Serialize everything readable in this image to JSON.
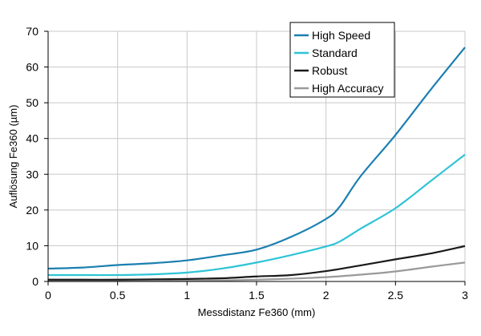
{
  "chart_data": {
    "type": "line",
    "title": "",
    "xlabel": "Messdistanz Fe360 (mm)",
    "ylabel": "Auflösung Fe360 (µm)",
    "xlim": [
      0,
      3
    ],
    "ylim": [
      0,
      70
    ],
    "x_ticks": [
      "0",
      "0.5",
      "1",
      "1.5",
      "2",
      "2.5",
      "3"
    ],
    "y_ticks": [
      "0",
      "10",
      "20",
      "30",
      "40",
      "50",
      "60",
      "70"
    ],
    "grid": true,
    "legend_position": "top-right",
    "series": [
      {
        "name": "High Speed",
        "color": "#1a7fb0",
        "x": [
          0,
          0.25,
          0.5,
          0.75,
          1.0,
          1.25,
          1.5,
          1.75,
          2.0,
          2.1,
          2.25,
          2.5,
          2.75,
          3.0
        ],
        "y": [
          3.6,
          3.9,
          4.6,
          5.1,
          5.9,
          7.3,
          8.9,
          12.5,
          17.5,
          21.0,
          29.5,
          41.0,
          53.5,
          65.5
        ]
      },
      {
        "name": "Standard",
        "color": "#2ec4d6",
        "x": [
          0,
          0.25,
          0.5,
          0.75,
          1.0,
          1.25,
          1.5,
          1.75,
          2.0,
          2.1,
          2.25,
          2.5,
          2.75,
          3.0
        ],
        "y": [
          1.8,
          1.8,
          1.8,
          2.0,
          2.5,
          3.6,
          5.3,
          7.4,
          9.8,
          11.2,
          14.8,
          20.5,
          28.0,
          35.5
        ]
      },
      {
        "name": "Robust",
        "color": "#1a1a1a",
        "x": [
          0,
          0.25,
          0.5,
          0.75,
          1.0,
          1.25,
          1.5,
          1.75,
          2.0,
          2.25,
          2.5,
          2.75,
          3.0
        ],
        "y": [
          0.5,
          0.5,
          0.5,
          0.6,
          0.7,
          0.9,
          1.4,
          1.8,
          2.9,
          4.5,
          6.2,
          7.8,
          9.9
        ]
      },
      {
        "name": "High Accuracy",
        "color": "#9a9a9a",
        "x": [
          0,
          0.25,
          0.5,
          0.75,
          1.0,
          1.25,
          1.5,
          1.75,
          2.0,
          2.25,
          2.5,
          2.75,
          3.0
        ],
        "y": [
          0.1,
          0.1,
          0.1,
          0.15,
          0.2,
          0.3,
          0.5,
          0.8,
          1.2,
          1.9,
          2.8,
          4.1,
          5.3
        ]
      }
    ]
  }
}
